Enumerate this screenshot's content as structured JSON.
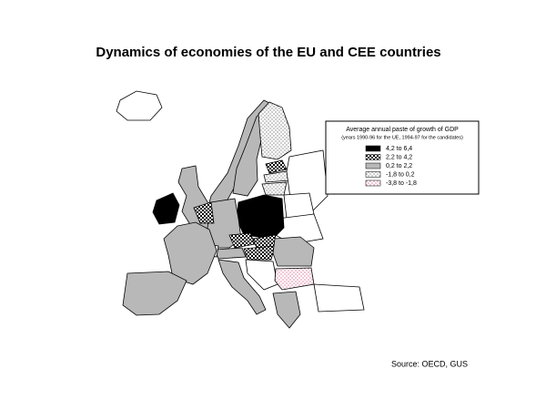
{
  "title": "Dynamics of economies of the EU and CEE countries",
  "legend": {
    "title": "Average annual paste of growth of GDP",
    "subtitle": "(years 1990-96 for the UE, 1994-97 for the candidates)",
    "items": [
      {
        "label": "4,2 to  6,4",
        "pattern": "black"
      },
      {
        "label": "2,2 to  4,2",
        "pattern": "checker"
      },
      {
        "label": "0,2 to  2,2",
        "pattern": "gray"
      },
      {
        "label": "-1,8 to  0,2",
        "pattern": "dots"
      },
      {
        "label": "-3,8 to  -1,8",
        "pattern": "pinkdots"
      }
    ]
  },
  "source": "Source: OECD, GUS"
}
